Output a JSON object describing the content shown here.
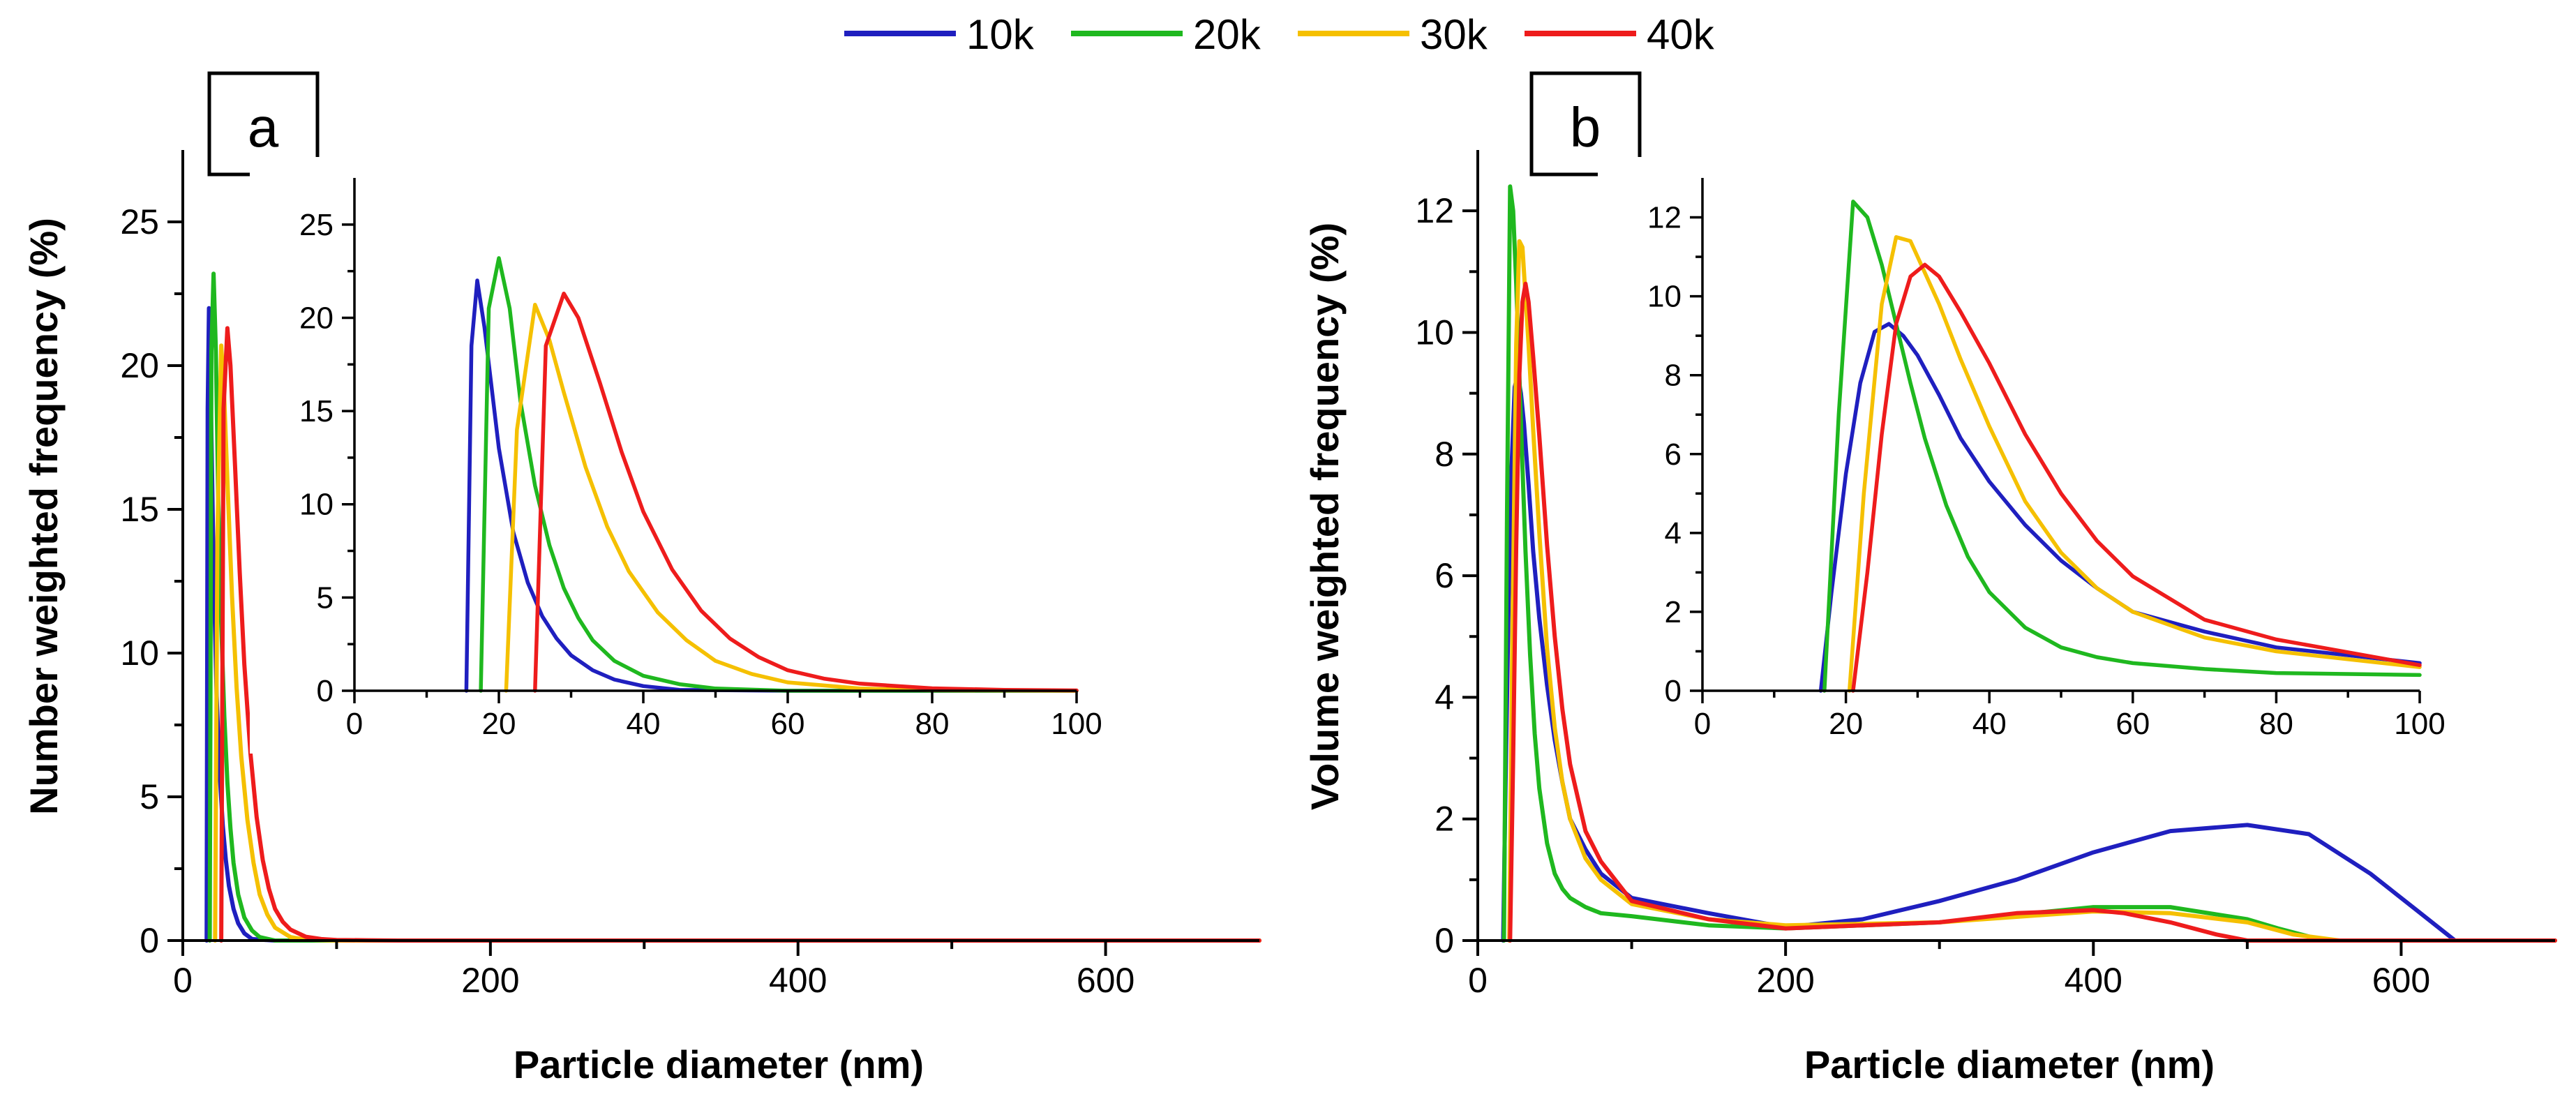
{
  "legend": {
    "items": [
      {
        "label": "10k",
        "color": "#1f1fbf"
      },
      {
        "label": "20k",
        "color": "#1fb81f"
      },
      {
        "label": "30k",
        "color": "#f5c000"
      },
      {
        "label": "40k",
        "color": "#ee1c1c"
      }
    ]
  },
  "chart_data": [
    {
      "type": "line",
      "panel": "a",
      "panel_label": "a",
      "xlabel": "Particle diameter (nm)",
      "ylabel": "Number weighted frequency (%)",
      "xlim": [
        0,
        700
      ],
      "ylim": [
        0,
        27.5
      ],
      "xticks": [
        0,
        200,
        400,
        600
      ],
      "yticks": [
        0,
        5,
        10,
        15,
        20,
        25
      ],
      "series": [
        {
          "name": "10k",
          "x": [
            15.5,
            16.2,
            17,
            18,
            20,
            22,
            24,
            26,
            28,
            30,
            33,
            36,
            40,
            45,
            60,
            100,
            700
          ],
          "y": [
            0,
            18.5,
            22,
            19.5,
            13,
            8.5,
            5.8,
            4,
            2.8,
            1.9,
            1.1,
            0.6,
            0.25,
            0.05,
            0,
            0,
            0
          ]
        },
        {
          "name": "20k",
          "x": [
            17.5,
            18.6,
            20,
            21.5,
            23,
            25,
            27,
            29,
            31,
            33,
            36,
            40,
            45,
            50,
            60,
            100,
            700
          ],
          "y": [
            0,
            20.5,
            23.2,
            20.5,
            15.5,
            11,
            7.8,
            5.5,
            3.9,
            2.7,
            1.6,
            0.8,
            0.35,
            0.12,
            0,
            0,
            0
          ]
        },
        {
          "name": "30k",
          "x": [
            21,
            22.5,
            25,
            27,
            29,
            32,
            35,
            38,
            42,
            46,
            50,
            55,
            60,
            70,
            80,
            100,
            700
          ],
          "y": [
            0,
            14,
            20.7,
            18.8,
            16,
            12,
            8.8,
            6.4,
            4.2,
            2.7,
            1.6,
            0.9,
            0.45,
            0.12,
            0.03,
            0,
            0
          ]
        },
        {
          "name": "40k",
          "x": [
            25,
            26.5,
            29,
            31,
            34,
            37,
            40,
            44,
            48,
            52,
            56,
            60,
            65,
            70,
            80,
            90,
            100,
            120,
            140,
            700
          ],
          "y": [
            0,
            18.5,
            21.3,
            20,
            16.5,
            12.8,
            9.6,
            6.5,
            4.3,
            2.8,
            1.8,
            1.1,
            0.65,
            0.38,
            0.13,
            0.05,
            0.02,
            0.01,
            0,
            0
          ]
        }
      ],
      "inset": {
        "xlim": [
          0,
          100
        ],
        "ylim": [
          0,
          27.5
        ],
        "xticks": [
          0,
          20,
          40,
          60,
          80,
          100
        ],
        "yticks": [
          0,
          5,
          10,
          15,
          20,
          25
        ]
      }
    },
    {
      "type": "line",
      "panel": "b",
      "panel_label": "b",
      "xlabel": "Particle diameter (nm)",
      "ylabel": "Volume weighted frequency (%)",
      "xlim": [
        0,
        700
      ],
      "ylim": [
        0,
        13
      ],
      "xticks": [
        0,
        200,
        400,
        600
      ],
      "yticks": [
        0,
        2,
        4,
        6,
        8,
        10,
        12
      ],
      "series": [
        {
          "name": "10k",
          "x": [
            16.5,
            18,
            20,
            22,
            24,
            26,
            28,
            30,
            33,
            36,
            40,
            45,
            50,
            55,
            60,
            70,
            80,
            100,
            150,
            200,
            250,
            300,
            350,
            400,
            450,
            500,
            540,
            580,
            610,
            635
          ],
          "y": [
            0,
            2.5,
            5.5,
            7.8,
            9.1,
            9.3,
            9.0,
            8.5,
            7.5,
            6.4,
            5.3,
            4.2,
            3.3,
            2.6,
            2.0,
            1.5,
            1.1,
            0.7,
            0.45,
            0.22,
            0.35,
            0.65,
            1.0,
            1.45,
            1.8,
            1.9,
            1.75,
            1.1,
            0.5,
            0
          ]
        },
        {
          "name": "20k",
          "x": [
            17,
            19,
            21,
            23,
            25,
            27,
            29,
            31,
            34,
            37,
            40,
            45,
            50,
            55,
            60,
            70,
            80,
            100,
            150,
            200,
            300,
            400,
            450,
            500,
            520,
            550,
            700
          ],
          "y": [
            0,
            7,
            12.4,
            12,
            10.8,
            9.3,
            7.8,
            6.4,
            4.7,
            3.4,
            2.5,
            1.6,
            1.1,
            0.85,
            0.7,
            0.55,
            0.45,
            0.4,
            0.25,
            0.2,
            0.3,
            0.55,
            0.55,
            0.35,
            0.2,
            0,
            0
          ]
        },
        {
          "name": "30k",
          "x": [
            20.5,
            22.5,
            25,
            27,
            29,
            31,
            33,
            36,
            40,
            45,
            50,
            55,
            60,
            70,
            80,
            100,
            150,
            200,
            300,
            400,
            450,
            500,
            530,
            560,
            700
          ],
          "y": [
            0,
            5,
            9.8,
            11.5,
            11.4,
            10.6,
            9.8,
            8.4,
            6.7,
            4.8,
            3.5,
            2.6,
            2.0,
            1.35,
            1.0,
            0.6,
            0.35,
            0.25,
            0.3,
            0.48,
            0.45,
            0.3,
            0.1,
            0,
            0
          ]
        },
        {
          "name": "40k",
          "x": [
            21,
            23,
            25,
            27,
            29,
            31,
            33,
            36,
            40,
            45,
            50,
            55,
            60,
            70,
            80,
            100,
            150,
            200,
            300,
            350,
            400,
            420,
            450,
            480,
            500,
            700
          ],
          "y": [
            0,
            3,
            6.5,
            9.3,
            10.5,
            10.8,
            10.5,
            9.6,
            8.3,
            6.5,
            5.0,
            3.8,
            2.9,
            1.8,
            1.3,
            0.65,
            0.35,
            0.2,
            0.3,
            0.45,
            0.5,
            0.45,
            0.3,
            0.1,
            0,
            0
          ]
        }
      ],
      "inset": {
        "xlim": [
          0,
          100
        ],
        "ylim": [
          0,
          13
        ],
        "xticks": [
          0,
          20,
          40,
          60,
          80,
          100
        ],
        "yticks": [
          0,
          2,
          4,
          6,
          8,
          10,
          12
        ]
      }
    }
  ]
}
